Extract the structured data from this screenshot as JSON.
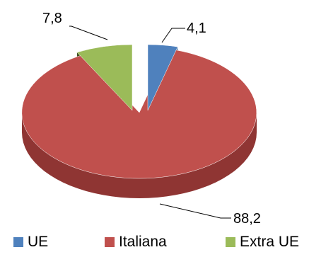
{
  "chart_data": {
    "type": "pie",
    "style": "3d-exploded",
    "categories": [
      "UE",
      "Italiana",
      "Extra UE"
    ],
    "values": [
      4.1,
      88.2,
      7.8
    ],
    "data_labels": [
      "4,1",
      "88,2",
      "7,8"
    ],
    "colors": [
      "#4F81BD",
      "#C0504D",
      "#9BBB59"
    ],
    "side_colors": [
      "#3A6494",
      "#8F3533",
      "#3E4F1E"
    ],
    "legend_position": "bottom",
    "title": ""
  }
}
